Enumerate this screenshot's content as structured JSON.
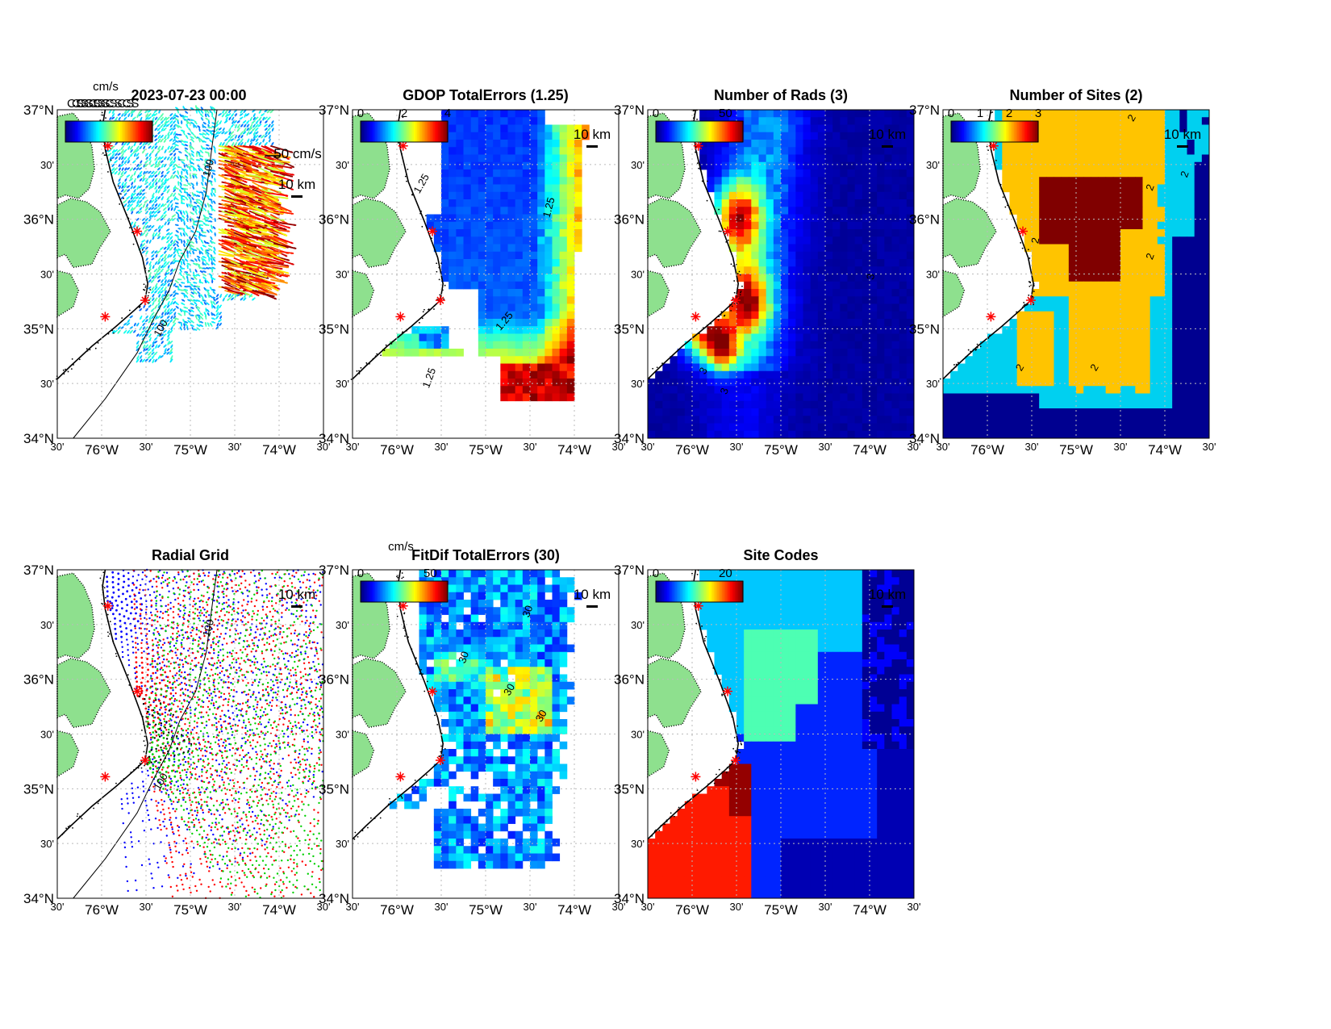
{
  "figure": {
    "panels": [
      {
        "id": "currents",
        "title": "2023-07-23 00:00",
        "colorbar": {
          "unit": "cm/s",
          "ticks": [],
          "overprinted_text": "CSCSCSCSCSCS"
        },
        "extra_labels": [
          "50 cm/s",
          "10 km"
        ],
        "contour_labels": [
          "100",
          "100"
        ],
        "layer": "vectors"
      },
      {
        "id": "gdop",
        "title": "GDOP TotalErrors (1.25)",
        "colorbar": {
          "unit": "",
          "ticks": [
            "0",
            "2",
            "4"
          ]
        },
        "extra_labels": [
          "10 km"
        ],
        "contour_labels": [
          "1.25",
          "1.25",
          "1.25",
          "1.25"
        ],
        "layer": "grid"
      },
      {
        "id": "nrads",
        "title": "Number of Rads (3)",
        "colorbar": {
          "unit": "",
          "ticks": [
            "0",
            "50"
          ]
        },
        "extra_labels": [
          "10 km"
        ],
        "contour_labels": [
          "3",
          "3",
          "3"
        ],
        "layer": "grid"
      },
      {
        "id": "nsites",
        "title": "Number of Sites (2)",
        "colorbar": {
          "unit": "",
          "ticks": [
            "0",
            "1",
            "2",
            "3"
          ]
        },
        "extra_labels": [
          "10 km"
        ],
        "contour_labels": [
          "2",
          "2",
          "2",
          "2",
          "2",
          "2",
          "2"
        ],
        "layer": "grid"
      },
      {
        "id": "radgrid",
        "title": "Radial Grid",
        "colorbar": null,
        "extra_labels": [
          "10 km"
        ],
        "contour_labels": [
          "100",
          "100"
        ],
        "layer": "radial"
      },
      {
        "id": "fitdif",
        "title": "FitDif TotalErrors (30)",
        "colorbar": {
          "unit": "cm/s",
          "ticks": [
            "0",
            "50"
          ]
        },
        "extra_labels": [
          "10 km"
        ],
        "contour_labels": [
          "30",
          "30",
          "30",
          "30"
        ],
        "layer": "grid"
      },
      {
        "id": "sitecodes",
        "title": "Site Codes",
        "colorbar": {
          "unit": "",
          "ticks": [
            "0",
            "20"
          ]
        },
        "extra_labels": [
          "10 km"
        ],
        "contour_labels": [],
        "layer": "grid"
      }
    ],
    "axes": {
      "lat_ticks": [
        "37°N",
        "30'",
        "36°N",
        "30'",
        "35°N",
        "30'",
        "34°N"
      ],
      "lon_ticks": [
        "30'",
        "76°W",
        "30'",
        "75°W",
        "30'",
        "74°W",
        "30'"
      ],
      "lat_range": [
        34,
        37
      ],
      "lon_range": [
        -76.5,
        -73.5
      ]
    },
    "colors": {
      "land": "#8ee08e",
      "site_marker": "#ff0000",
      "jet_low": "#00008f",
      "jet_high": "#800000",
      "sites_yellow": "#ffc400",
      "sites_cyan": "#00d0f0",
      "sites_navy": "#000090",
      "sites_maroon": "#800000"
    }
  },
  "chart_data": [
    {
      "type": "heatmap",
      "title": "2023-07-23 00:00",
      "subtype": "vector-field",
      "colorbar_unit": "cm/s",
      "scale_arrow": "50 cm/s",
      "scale_bar": "10 km",
      "xlim": [
        -76.5,
        -73.5
      ],
      "ylim": [
        34,
        37
      ],
      "grid": true
    },
    {
      "type": "heatmap",
      "title": "GDOP TotalErrors (1.25)",
      "colorbar_range": [
        0,
        4
      ],
      "contour_level": 1.25,
      "xlim": [
        -76.5,
        -73.5
      ],
      "ylim": [
        34,
        37
      ],
      "grid": true
    },
    {
      "type": "heatmap",
      "title": "Number of Rads (3)",
      "colorbar_range": [
        0,
        50
      ],
      "contour_level": 3,
      "xlim": [
        -76.5,
        -73.5
      ],
      "ylim": [
        34,
        37
      ],
      "grid": true
    },
    {
      "type": "heatmap",
      "title": "Number of Sites (2)",
      "colorbar_range": [
        0,
        3
      ],
      "contour_level": 2,
      "categories": [
        0,
        1,
        2,
        3
      ],
      "xlim": [
        -76.5,
        -73.5
      ],
      "ylim": [
        34,
        37
      ],
      "grid": true
    },
    {
      "type": "scatter",
      "title": "Radial Grid",
      "series_colors": [
        "#0000ff",
        "#ff0000",
        "#00d000",
        "#000000"
      ],
      "xlim": [
        -76.5,
        -73.5
      ],
      "ylim": [
        34,
        37
      ],
      "grid": true
    },
    {
      "type": "heatmap",
      "title": "FitDif TotalErrors (30)",
      "colorbar_unit": "cm/s",
      "colorbar_range": [
        0,
        50
      ],
      "contour_level": 30,
      "xlim": [
        -76.5,
        -73.5
      ],
      "ylim": [
        34,
        37
      ],
      "grid": true
    },
    {
      "type": "heatmap",
      "title": "Site Codes",
      "colorbar_range": [
        0,
        20
      ],
      "xlim": [
        -76.5,
        -73.5
      ],
      "ylim": [
        34,
        37
      ],
      "grid": true
    }
  ]
}
